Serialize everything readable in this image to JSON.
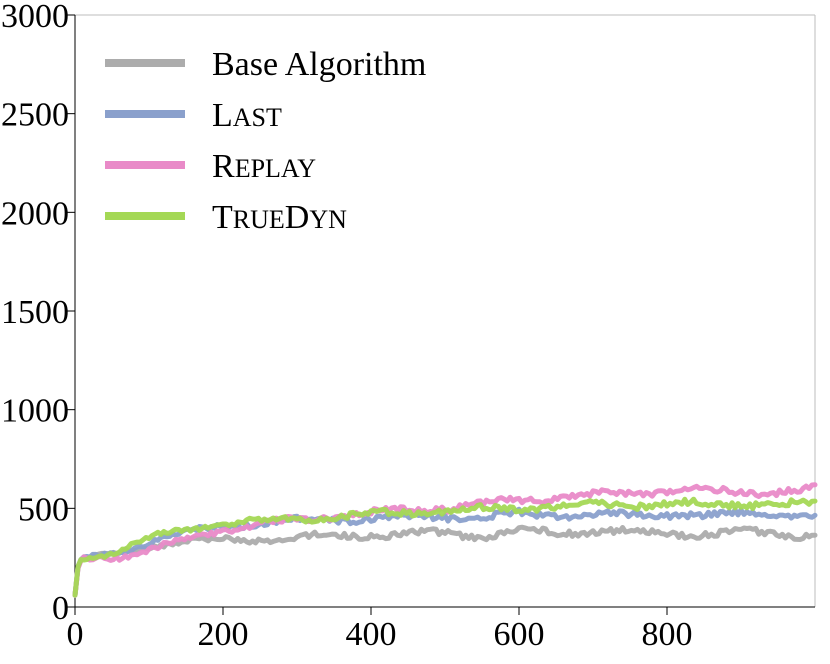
{
  "chart_data": {
    "type": "line",
    "title": "",
    "xlabel": "",
    "ylabel": "",
    "xlim": [
      0,
      1000
    ],
    "ylim": [
      0,
      3000
    ],
    "xticks": [
      0,
      200,
      400,
      600,
      800
    ],
    "xtick_labels": [
      "0",
      "200",
      "400",
      "600",
      "800"
    ],
    "yticks": [
      0,
      500,
      1000,
      1500,
      2000,
      2500,
      3000
    ],
    "ytick_labels": [
      "0",
      "500",
      "1000",
      "1500",
      "2000",
      "2500",
      "3000"
    ],
    "grid": false,
    "legend_position": "top-left",
    "series": [
      {
        "name": "Base Algorithm",
        "display": [
          {
            "t": "Base Algorithm",
            "sc": false
          }
        ],
        "color": "#acacac",
        "x": [
          0,
          3,
          6,
          10,
          20,
          40,
          60,
          80,
          100,
          120,
          150,
          200,
          250,
          300,
          350,
          400,
          450,
          500,
          550,
          600,
          650,
          700,
          750,
          800,
          850,
          900,
          950,
          1000
        ],
        "y": [
          60,
          180,
          230,
          245,
          250,
          260,
          275,
          295,
          310,
          320,
          330,
          340,
          345,
          350,
          360,
          365,
          370,
          375,
          360,
          390,
          375,
          385,
          380,
          375,
          370,
          380,
          370,
          365
        ]
      },
      {
        "name": "Last",
        "display": [
          {
            "t": "L",
            "sc": false
          },
          {
            "t": "AST",
            "sc": true
          }
        ],
        "color": "#8aa0cc",
        "x": [
          0,
          3,
          6,
          10,
          20,
          40,
          60,
          80,
          100,
          120,
          150,
          200,
          250,
          300,
          350,
          400,
          450,
          500,
          550,
          600,
          650,
          700,
          750,
          800,
          850,
          900,
          950,
          1000
        ],
        "y": [
          60,
          190,
          235,
          245,
          250,
          260,
          280,
          305,
          330,
          350,
          380,
          410,
          425,
          440,
          445,
          450,
          455,
          460,
          455,
          470,
          465,
          470,
          460,
          475,
          465,
          470,
          465,
          460
        ]
      },
      {
        "name": "Replay",
        "display": [
          {
            "t": "R",
            "sc": false
          },
          {
            "t": "EPLAY",
            "sc": true
          }
        ],
        "color": "#e98ac8",
        "x": [
          0,
          3,
          6,
          10,
          20,
          40,
          60,
          80,
          100,
          120,
          150,
          200,
          250,
          300,
          350,
          400,
          450,
          500,
          550,
          600,
          650,
          700,
          750,
          800,
          850,
          900,
          950,
          1000
        ],
        "y": [
          60,
          180,
          230,
          240,
          245,
          250,
          255,
          270,
          290,
          310,
          340,
          390,
          420,
          440,
          460,
          475,
          490,
          505,
          520,
          540,
          555,
          565,
          575,
          590,
          590,
          580,
          585,
          595
        ]
      },
      {
        "name": "TrueDyn",
        "display": [
          {
            "t": "T",
            "sc": false
          },
          {
            "t": "RUE",
            "sc": true
          },
          {
            "t": "D",
            "sc": false
          },
          {
            "t": "YN",
            "sc": true
          }
        ],
        "color": "#a4d855",
        "x": [
          0,
          3,
          6,
          10,
          20,
          40,
          60,
          80,
          100,
          120,
          150,
          200,
          250,
          300,
          350,
          400,
          450,
          500,
          550,
          600,
          650,
          700,
          750,
          800,
          850,
          900,
          950,
          1000
        ],
        "y": [
          60,
          190,
          235,
          245,
          250,
          265,
          290,
          320,
          350,
          370,
          395,
          420,
          435,
          445,
          455,
          470,
          480,
          490,
          495,
          505,
          510,
          515,
          520,
          525,
          520,
          525,
          520,
          515
        ]
      }
    ]
  }
}
